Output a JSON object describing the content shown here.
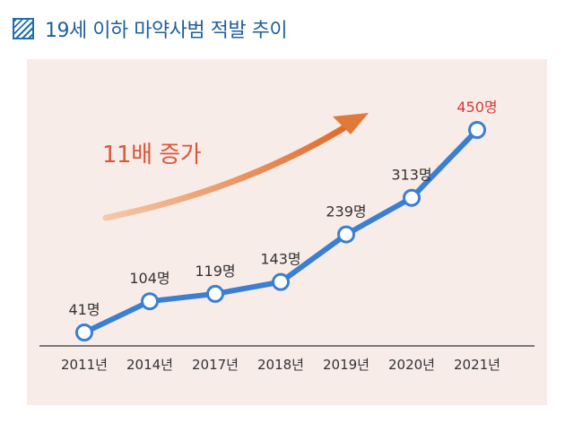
{
  "header": {
    "title": "19세 이하 마약사범 적발 추이",
    "icon": "hatch-square-icon"
  },
  "annotation": {
    "text": "11배 증가",
    "color": "#d9573a"
  },
  "colors": {
    "line": "#3b7fd0",
    "panel_bg": "#f8ece9",
    "highlight_label": "#d93a3a",
    "arrow": "#e07a3a",
    "title": "#1f5f9e"
  },
  "chart_data": {
    "type": "line",
    "title": "19세 이하 마약사범 적발 추이",
    "categories": [
      "2011년",
      "2014년",
      "2017년",
      "2018년",
      "2019년",
      "2020년",
      "2021년"
    ],
    "values": [
      41,
      104,
      119,
      143,
      239,
      313,
      450
    ],
    "data_labels": [
      "41명",
      "104명",
      "119명",
      "143명",
      "239명",
      "313명",
      "450명"
    ],
    "highlight_index": 6,
    "ylim": [
      0,
      480
    ],
    "grid": false,
    "legend": "none"
  }
}
